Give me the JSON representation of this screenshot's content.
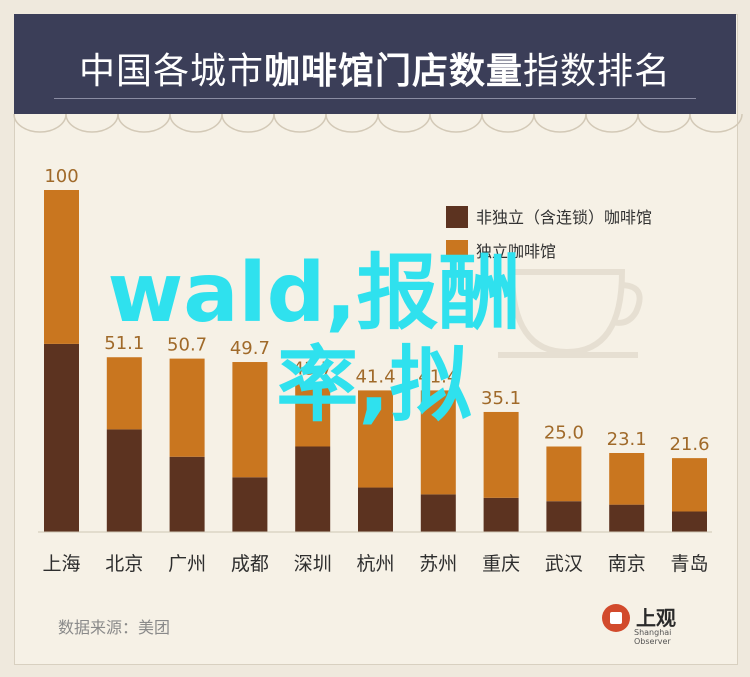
{
  "title_plain": "中国各城市",
  "title_bold": "咖啡馆门店数量",
  "title_tail": "指数排名",
  "legend": {
    "items": [
      {
        "label": "非独立（含连锁）咖啡馆",
        "color": "#5c3320"
      },
      {
        "label": "独立咖啡馆",
        "color": "#c9761f"
      }
    ]
  },
  "source": "数据来源：美团",
  "logo": {
    "name": "上观",
    "sub": "Shanghai Observer"
  },
  "watermark": {
    "line1": "wald,报酬",
    "line2": "率,拟"
  },
  "chart_data": {
    "type": "bar",
    "stacked": true,
    "categories": [
      "上海",
      "北京",
      "广州",
      "成都",
      "深圳",
      "杭州",
      "苏州",
      "重庆",
      "武汉",
      "南京",
      "青岛"
    ],
    "totals": [
      "100",
      "51.1",
      "50.7",
      "49.7",
      "43.7",
      "41.4",
      "41.4",
      "35.1",
      "25.0",
      "23.1",
      "21.6"
    ],
    "total_values": [
      100,
      51.1,
      50.7,
      49.7,
      43.7,
      41.4,
      41.4,
      35.1,
      25.0,
      23.1,
      21.6
    ],
    "series": [
      {
        "name": "非独立（含连锁）咖啡馆",
        "values": [
          55,
          30,
          22,
          16,
          25,
          13,
          11,
          10,
          9,
          8,
          6
        ]
      },
      {
        "name": "独立咖啡馆",
        "values": [
          45,
          21.1,
          28.7,
          33.7,
          18.7,
          28.4,
          30.4,
          25.1,
          16.0,
          15.1,
          15.6
        ]
      }
    ],
    "ylim": [
      0,
      100
    ],
    "grid": false,
    "legend_position": "top-right"
  }
}
